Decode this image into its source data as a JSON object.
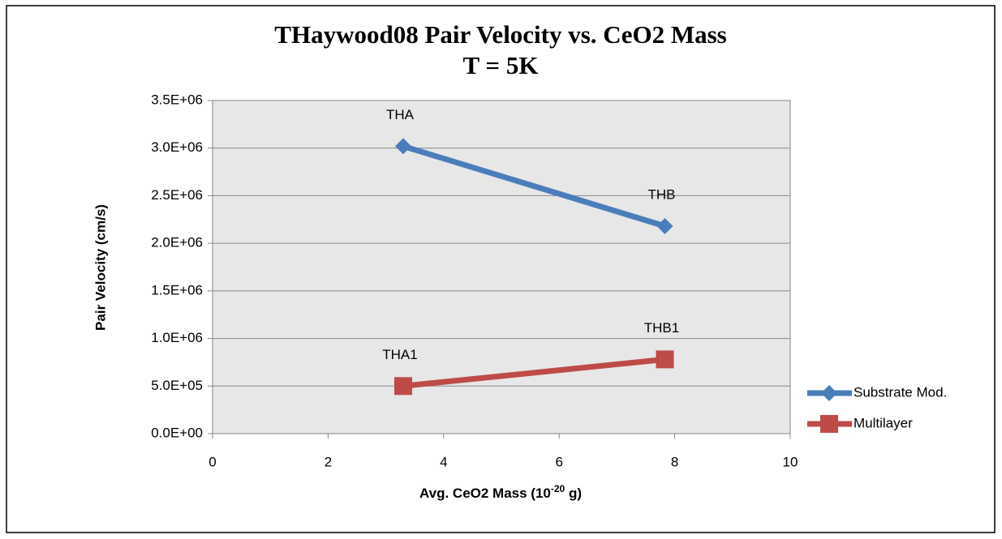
{
  "chart_data": {
    "type": "line",
    "title": [
      "THaywood08 Pair Velocity vs. CeO2 Mass",
      "T = 5K"
    ],
    "y_label": "Pair Velocity (cm/s)",
    "x_label": {
      "text": "Avg. CeO2 Mass (10",
      "sup": "-20",
      "tail": " g)"
    },
    "xlim": [
      0,
      10
    ],
    "xticks": [
      0,
      2,
      4,
      6,
      8,
      10
    ],
    "ylim": [
      0,
      3500000
    ],
    "yticks": [
      {
        "value": 0,
        "label": "0.0E+00"
      },
      {
        "value": 500000,
        "label": "5.0E+05"
      },
      {
        "value": 1000000,
        "label": "1.0E+06"
      },
      {
        "value": 1500000,
        "label": "1.5E+06"
      },
      {
        "value": 2000000,
        "label": "2.0E+06"
      },
      {
        "value": 2500000,
        "label": "2.5E+06"
      },
      {
        "value": 3000000,
        "label": "3.0E+06"
      },
      {
        "value": 3500000,
        "label": "3.5E+06"
      }
    ],
    "grid": true,
    "legend": "right",
    "series": [
      {
        "name": "Substrate Mod.",
        "color": "#4a7ebb",
        "marker": "diamond",
        "x": [
          3.3,
          7.83
        ],
        "values": [
          3020000,
          2180000
        ],
        "point_labels": [
          "THA",
          "THB"
        ]
      },
      {
        "name": "Multilayer",
        "color": "#be4b48",
        "marker": "square",
        "x": [
          3.3,
          7.83
        ],
        "values": [
          500000,
          780000
        ],
        "point_labels": [
          "THA1",
          "THB1"
        ]
      }
    ]
  }
}
